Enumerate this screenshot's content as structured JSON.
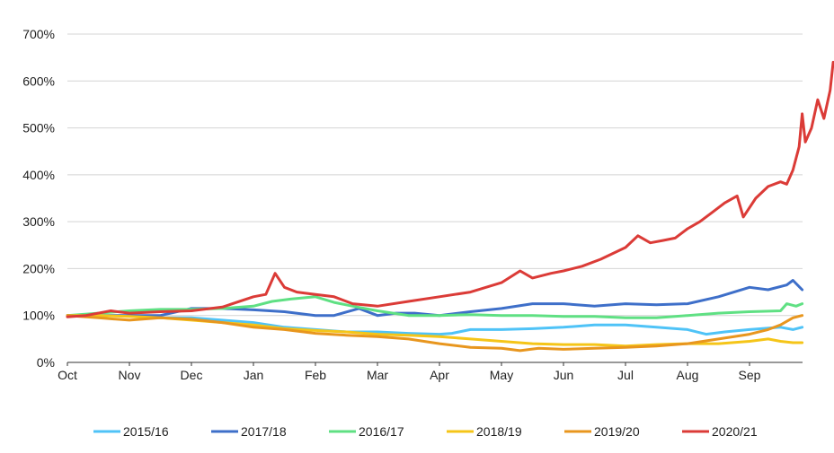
{
  "chart_data": {
    "type": "line",
    "x_tick_labels": [
      "Oct",
      "Nov",
      "Dec",
      "Jan",
      "Feb",
      "Mar",
      "Apr",
      "May",
      "Jun",
      "Jul",
      "Aug",
      "Sep"
    ],
    "y_tick_labels": [
      "0%",
      "100%",
      "200%",
      "300%",
      "400%",
      "500%",
      "600%",
      "700%"
    ],
    "ylim": [
      0,
      700
    ],
    "xlim": [
      0,
      11.9
    ],
    "grid": "horizontal",
    "legend_position": "bottom",
    "series": [
      {
        "name": "2015/16",
        "color": "#4fc3f7",
        "points": [
          [
            0,
            100
          ],
          [
            1,
            100
          ],
          [
            1.5,
            95
          ],
          [
            2,
            95
          ],
          [
            2.5,
            90
          ],
          [
            3,
            85
          ],
          [
            3.5,
            75
          ],
          [
            4,
            70
          ],
          [
            4.5,
            65
          ],
          [
            5,
            65
          ],
          [
            5.5,
            62
          ],
          [
            6,
            60
          ],
          [
            6.2,
            62
          ],
          [
            6.5,
            70
          ],
          [
            7,
            70
          ],
          [
            7.5,
            72
          ],
          [
            8,
            75
          ],
          [
            8.5,
            80
          ],
          [
            9,
            80
          ],
          [
            9.5,
            75
          ],
          [
            10,
            70
          ],
          [
            10.3,
            60
          ],
          [
            10.6,
            65
          ],
          [
            11,
            70
          ],
          [
            11.5,
            75
          ],
          [
            11.7,
            70
          ],
          [
            11.85,
            75
          ]
        ]
      },
      {
        "name": "2017/18",
        "color": "#3e6fc9",
        "points": [
          [
            0,
            100
          ],
          [
            0.5,
            100
          ],
          [
            1,
            100
          ],
          [
            1.5,
            100
          ],
          [
            2,
            115
          ],
          [
            2.5,
            115
          ],
          [
            3,
            112
          ],
          [
            3.5,
            108
          ],
          [
            4,
            100
          ],
          [
            4.3,
            100
          ],
          [
            4.7,
            115
          ],
          [
            5,
            100
          ],
          [
            5.3,
            105
          ],
          [
            5.6,
            105
          ],
          [
            6,
            100
          ],
          [
            6.5,
            108
          ],
          [
            7,
            115
          ],
          [
            7.5,
            125
          ],
          [
            8,
            125
          ],
          [
            8.5,
            120
          ],
          [
            9,
            125
          ],
          [
            9.5,
            123
          ],
          [
            10,
            125
          ],
          [
            10.5,
            140
          ],
          [
            11,
            160
          ],
          [
            11.3,
            155
          ],
          [
            11.6,
            165
          ],
          [
            11.7,
            175
          ],
          [
            11.85,
            155
          ]
        ]
      },
      {
        "name": "2016/17",
        "color": "#5fe083",
        "points": [
          [
            0,
            100
          ],
          [
            0.5,
            105
          ],
          [
            1,
            110
          ],
          [
            1.5,
            113
          ],
          [
            2,
            113
          ],
          [
            2.5,
            115
          ],
          [
            3,
            120
          ],
          [
            3.3,
            130
          ],
          [
            3.6,
            135
          ],
          [
            4,
            140
          ],
          [
            4.3,
            128
          ],
          [
            4.6,
            120
          ],
          [
            5,
            110
          ],
          [
            5.5,
            100
          ],
          [
            6,
            100
          ],
          [
            6.5,
            102
          ],
          [
            7,
            100
          ],
          [
            7.5,
            100
          ],
          [
            8,
            98
          ],
          [
            8.5,
            98
          ],
          [
            9,
            95
          ],
          [
            9.5,
            95
          ],
          [
            10,
            100
          ],
          [
            10.5,
            105
          ],
          [
            11,
            108
          ],
          [
            11.5,
            110
          ],
          [
            11.6,
            125
          ],
          [
            11.75,
            120
          ],
          [
            11.85,
            125
          ]
        ]
      },
      {
        "name": "2018/19",
        "color": "#f5c518",
        "points": [
          [
            0,
            100
          ],
          [
            0.5,
            100
          ],
          [
            1,
            98
          ],
          [
            1.5,
            95
          ],
          [
            2,
            90
          ],
          [
            2.5,
            85
          ],
          [
            3,
            80
          ],
          [
            3.5,
            72
          ],
          [
            4,
            68
          ],
          [
            4.5,
            65
          ],
          [
            5,
            60
          ],
          [
            5.5,
            58
          ],
          [
            6,
            55
          ],
          [
            6.5,
            50
          ],
          [
            7,
            45
          ],
          [
            7.5,
            40
          ],
          [
            8,
            38
          ],
          [
            8.5,
            38
          ],
          [
            9,
            35
          ],
          [
            9.5,
            38
          ],
          [
            10,
            40
          ],
          [
            10.5,
            40
          ],
          [
            11,
            45
          ],
          [
            11.3,
            50
          ],
          [
            11.5,
            45
          ],
          [
            11.7,
            42
          ],
          [
            11.85,
            42
          ]
        ]
      },
      {
        "name": "2019/20",
        "color": "#e8961e",
        "points": [
          [
            0,
            100
          ],
          [
            0.5,
            95
          ],
          [
            1,
            90
          ],
          [
            1.5,
            95
          ],
          [
            2,
            92
          ],
          [
            2.5,
            85
          ],
          [
            3,
            75
          ],
          [
            3.5,
            70
          ],
          [
            4,
            62
          ],
          [
            4.5,
            58
          ],
          [
            5,
            55
          ],
          [
            5.5,
            50
          ],
          [
            6,
            40
          ],
          [
            6.5,
            32
          ],
          [
            7,
            30
          ],
          [
            7.3,
            25
          ],
          [
            7.6,
            30
          ],
          [
            8,
            28
          ],
          [
            8.5,
            30
          ],
          [
            9,
            32
          ],
          [
            9.5,
            35
          ],
          [
            10,
            40
          ],
          [
            10.5,
            50
          ],
          [
            11,
            60
          ],
          [
            11.3,
            70
          ],
          [
            11.5,
            80
          ],
          [
            11.7,
            95
          ],
          [
            11.85,
            100
          ]
        ]
      },
      {
        "name": "2020/21",
        "color": "#db3b37",
        "points": [
          [
            0,
            97
          ],
          [
            0.3,
            100
          ],
          [
            0.7,
            110
          ],
          [
            1,
            105
          ],
          [
            1.5,
            108
          ],
          [
            2,
            110
          ],
          [
            2.5,
            118
          ],
          [
            3,
            140
          ],
          [
            3.2,
            145
          ],
          [
            3.35,
            190
          ],
          [
            3.5,
            160
          ],
          [
            3.7,
            150
          ],
          [
            4,
            145
          ],
          [
            4.3,
            140
          ],
          [
            4.6,
            125
          ],
          [
            5,
            120
          ],
          [
            5.5,
            130
          ],
          [
            6,
            140
          ],
          [
            6.5,
            150
          ],
          [
            7,
            170
          ],
          [
            7.3,
            195
          ],
          [
            7.5,
            180
          ],
          [
            7.8,
            190
          ],
          [
            8,
            195
          ],
          [
            8.3,
            205
          ],
          [
            8.6,
            220
          ],
          [
            9,
            245
          ],
          [
            9.2,
            270
          ],
          [
            9.4,
            255
          ],
          [
            9.6,
            260
          ],
          [
            9.8,
            265
          ],
          [
            10,
            285
          ],
          [
            10.2,
            300
          ],
          [
            10.4,
            320
          ],
          [
            10.6,
            340
          ],
          [
            10.8,
            355
          ],
          [
            10.9,
            310
          ],
          [
            11.1,
            350
          ],
          [
            11.3,
            375
          ],
          [
            11.5,
            385
          ],
          [
            11.6,
            380
          ],
          [
            11.7,
            410
          ],
          [
            11.8,
            460
          ],
          [
            11.85,
            530
          ],
          [
            11.9,
            470
          ],
          [
            12.0,
            500
          ],
          [
            12.1,
            560
          ],
          [
            12.2,
            520
          ],
          [
            12.3,
            580
          ],
          [
            12.35,
            640
          ]
        ]
      }
    ]
  }
}
